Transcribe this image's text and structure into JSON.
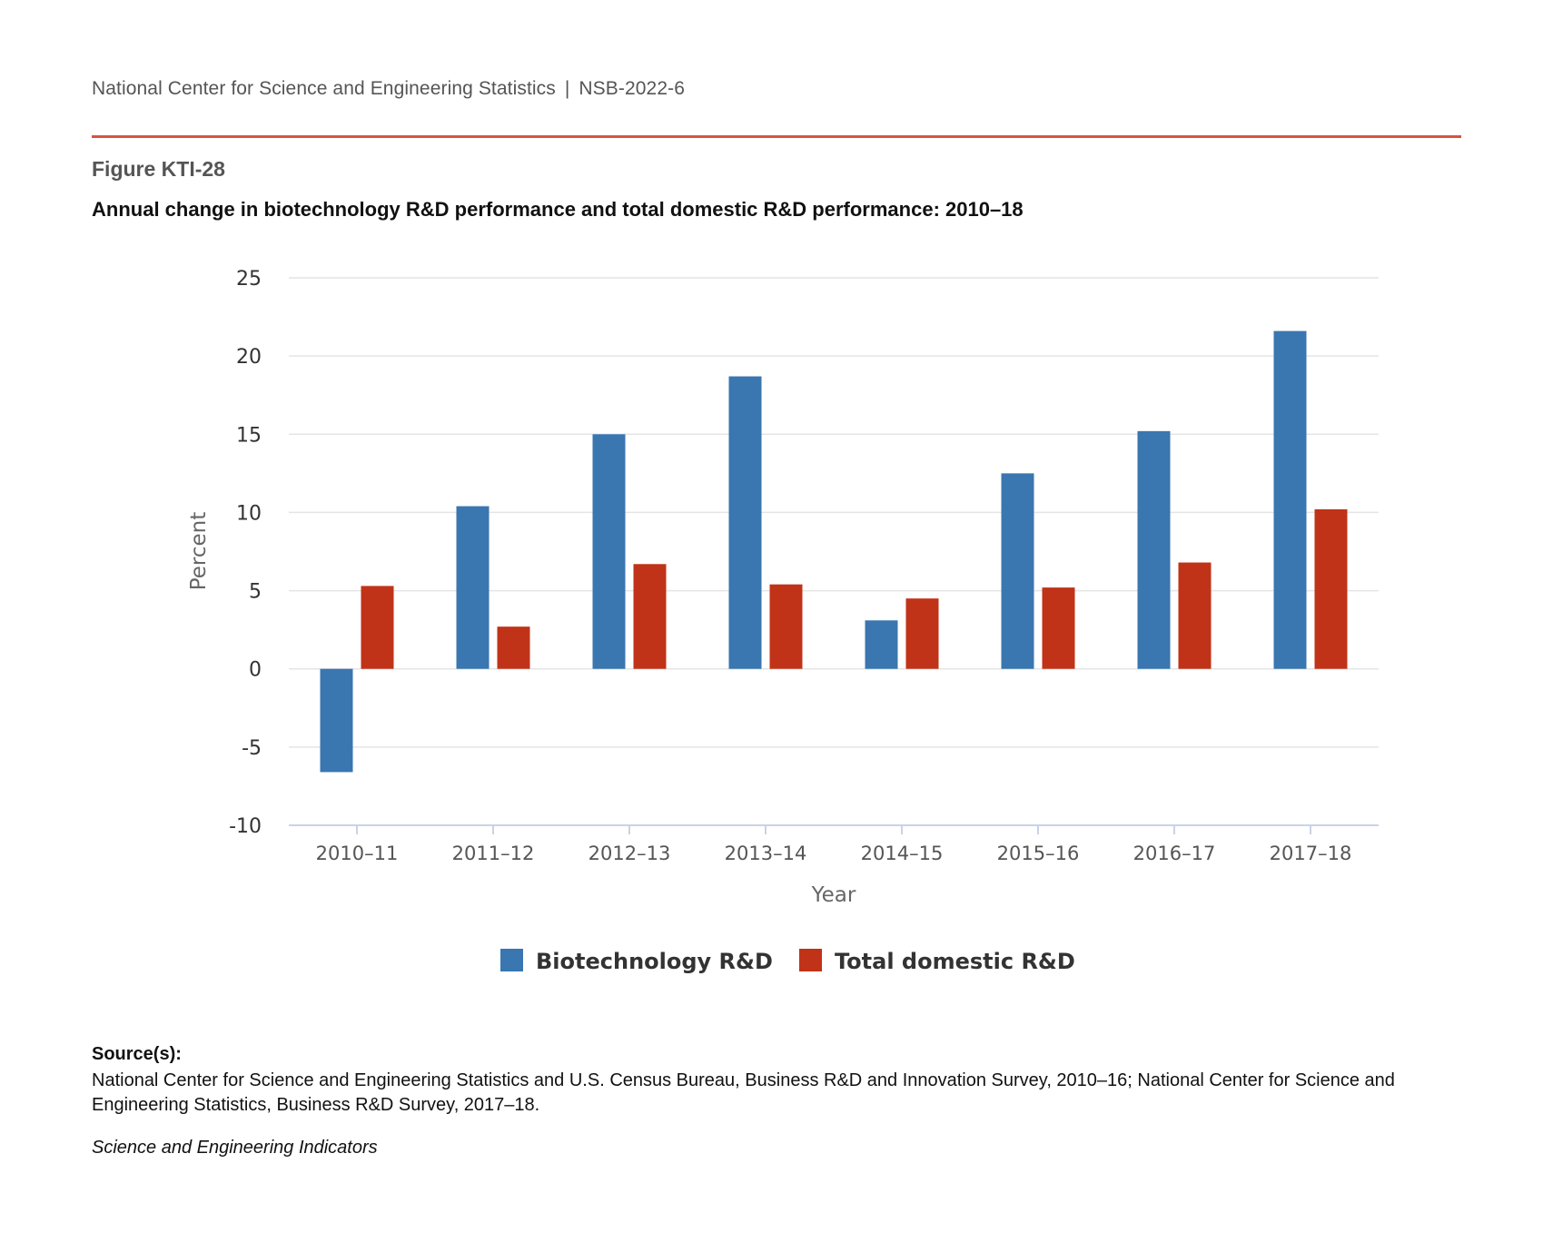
{
  "header": {
    "organization": "National Center for Science and Engineering Statistics",
    "separator": "|",
    "report_id": "NSB-2022-6",
    "rule_color": "#d9533f"
  },
  "figure": {
    "number": "Figure KTI-28",
    "title": "Annual change in biotechnology R&D performance and total domestic R&D performance: 2010–18"
  },
  "chart_data": {
    "type": "bar",
    "categories": [
      "2010–11",
      "2011–12",
      "2012–13",
      "2013–14",
      "2014–15",
      "2015–16",
      "2016–17",
      "2017–18"
    ],
    "series": [
      {
        "name": "Biotechnology R&D",
        "color": "#3a76b0",
        "values": [
          -6.6,
          10.4,
          15.0,
          18.7,
          3.1,
          12.5,
          15.2,
          21.6
        ]
      },
      {
        "name": "Total domestic R&D",
        "color": "#c03318",
        "values": [
          5.3,
          2.7,
          6.7,
          5.4,
          4.5,
          5.2,
          6.8,
          10.2
        ]
      }
    ],
    "xlabel": "Year",
    "ylabel": "Percent",
    "ylim": [
      -10,
      25
    ],
    "yticks": [
      "25",
      "20",
      "15",
      "10",
      "5",
      "0",
      "-5",
      "-10"
    ],
    "ytick_values": [
      25,
      20,
      15,
      10,
      5,
      0,
      -5,
      -10
    ],
    "grid": true,
    "legend_position": "bottom-center"
  },
  "source": {
    "label": "Source(s):",
    "text": "National Center for Science and Engineering Statistics and U.S. Census Bureau, Business R&D and Innovation Survey, 2010–16; National Center for Science and Engineering Statistics, Business R&D Survey, 2017–18.",
    "publication": "Science and Engineering Indicators"
  }
}
